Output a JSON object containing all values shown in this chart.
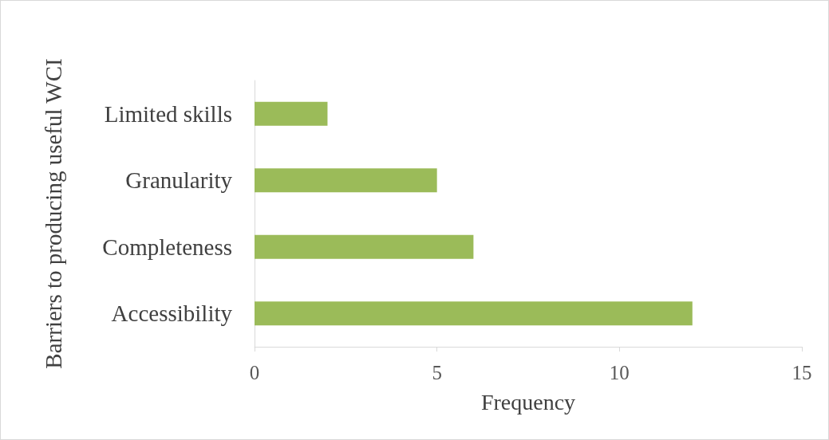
{
  "chart_data": {
    "type": "bar",
    "orientation": "horizontal",
    "xlabel": "Frequency",
    "ylabel": "Barriers to producing useful WCI",
    "categories": [
      "Limited skills",
      "Granularity",
      "Completeness",
      "Accessibility"
    ],
    "values": [
      2,
      5,
      6,
      12
    ],
    "color": "#9bbb59",
    "xlim": [
      0,
      15
    ],
    "xticks": [
      0,
      5,
      10,
      15
    ],
    "grid": false
  }
}
